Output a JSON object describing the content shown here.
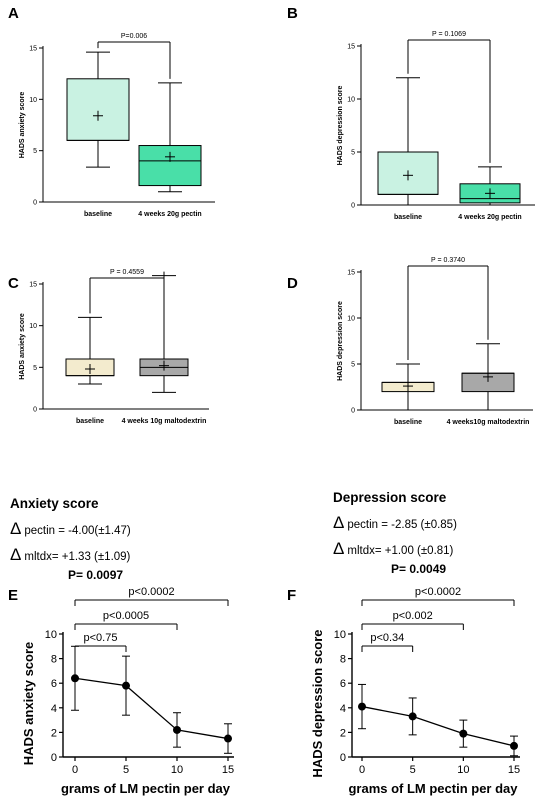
{
  "chart_data": [
    {
      "type": "box",
      "panel": "A",
      "ylabel": "HADS anxiety score",
      "ylim": [
        0,
        15
      ],
      "yticks": [
        "0",
        "5",
        "10",
        "15"
      ],
      "categories": [
        "baseline",
        "4 weeks 20g pectin"
      ],
      "boxes": [
        {
          "min": 3.4,
          "q1": 6.0,
          "median": 6.0,
          "q3": 12.0,
          "max": 14.6,
          "mean": 8.4,
          "color": "#c9f2e2"
        },
        {
          "min": 1.0,
          "q1": 1.6,
          "median": 4.0,
          "q3": 5.5,
          "max": 11.6,
          "mean": 4.4,
          "color": "#49dfa8"
        }
      ],
      "p_label": "P=0.006"
    },
    {
      "type": "box",
      "panel": "B",
      "ylabel": "HADS depression score",
      "ylim": [
        0,
        15
      ],
      "yticks": [
        "0",
        "5",
        "10",
        "15"
      ],
      "categories": [
        "baseline",
        "4 weeks 20g pectin"
      ],
      "boxes": [
        {
          "min": 0.0,
          "q1": 1.0,
          "median": 1.0,
          "q3": 5.0,
          "max": 12.0,
          "mean": 2.8,
          "color": "#c9f2e2"
        },
        {
          "min": 0.0,
          "q1": 0.2,
          "median": 0.6,
          "q3": 2.0,
          "max": 3.6,
          "mean": 1.1,
          "color": "#49dfa8"
        }
      ],
      "p_label": "P = 0.1069"
    },
    {
      "type": "box",
      "panel": "C",
      "ylabel": "HADS anxiety score",
      "ylim": [
        0,
        15
      ],
      "yticks": [
        "0",
        "5",
        "10",
        "15"
      ],
      "categories": [
        "baseline",
        "4 weeks 10g maltodextrin"
      ],
      "boxes": [
        {
          "min": 3.0,
          "q1": 4.0,
          "median": 4.0,
          "q3": 6.0,
          "max": 11.0,
          "mean": 4.8,
          "color": "#f3ebce"
        },
        {
          "min": 2.0,
          "q1": 4.0,
          "median": 5.0,
          "q3": 6.0,
          "max": 16.0,
          "mean": 5.2,
          "color": "#a8a8a8"
        }
      ],
      "p_label": "P = 0.4559"
    },
    {
      "type": "box",
      "panel": "D",
      "ylabel": "HADS depression score",
      "ylim": [
        0,
        15
      ],
      "yticks": [
        "0",
        "5",
        "10",
        "15"
      ],
      "categories": [
        "baseline",
        "4 weeks10g maltodextrin"
      ],
      "boxes": [
        {
          "min": 0.0,
          "q1": 2.0,
          "median": 3.0,
          "q3": 3.0,
          "max": 5.0,
          "mean": 2.6,
          "color": "#f3ebce"
        },
        {
          "min": 0.0,
          "q1": 2.0,
          "median": 4.0,
          "q3": 4.0,
          "max": 7.2,
          "mean": 3.6,
          "color": "#a8a8a8"
        }
      ],
      "p_label": "P = 0.3740"
    },
    {
      "type": "line",
      "panel": "E",
      "xlabel": "grams of LM pectin per day",
      "ylabel": "HADS anxiety score",
      "ylim": [
        0,
        10
      ],
      "yticks": [
        "0",
        "2",
        "4",
        "6",
        "8",
        "10"
      ],
      "xticks": [
        "0",
        "5",
        "10",
        "15"
      ],
      "x": [
        0,
        5,
        10,
        15
      ],
      "y": [
        6.4,
        5.8,
        2.2,
        1.5
      ],
      "err_lo": [
        2.6,
        2.4,
        1.4,
        1.2
      ],
      "err_hi": [
        2.6,
        2.4,
        1.4,
        1.2
      ],
      "brackets": [
        {
          "from": 0,
          "to": 15,
          "label": "p<0.0002"
        },
        {
          "from": 0,
          "to": 10,
          "label": "p<0.0005"
        },
        {
          "from": 0,
          "to": 5,
          "label": "p<0.75"
        }
      ]
    },
    {
      "type": "line",
      "panel": "F",
      "xlabel": "grams of LM pectin per day",
      "ylabel": "HADS depression score",
      "ylim": [
        0,
        10
      ],
      "yticks": [
        "0",
        "2",
        "4",
        "6",
        "8",
        "10"
      ],
      "xticks": [
        "0",
        "5",
        "10",
        "15"
      ],
      "x": [
        0,
        5,
        10,
        15
      ],
      "y": [
        4.1,
        3.3,
        1.9,
        0.9
      ],
      "err_lo": [
        1.8,
        1.5,
        1.1,
        0.8
      ],
      "err_hi": [
        1.8,
        1.5,
        1.1,
        0.8
      ],
      "brackets": [
        {
          "from": 0,
          "to": 15,
          "label": "p<0.0002"
        },
        {
          "from": 0,
          "to": 10,
          "label": "p<0.002"
        },
        {
          "from": 0,
          "to": 5,
          "label": "p<0.34"
        }
      ]
    }
  ],
  "stats": {
    "anxiety": {
      "title": "Anxiety score",
      "delta_symbol": "Δ",
      "pectin_line": "pectin = -4.00(±1.47)",
      "mltdx_line": "mltdx= +1.33 (±1.09)",
      "p": "P= 0.0097"
    },
    "depression": {
      "title": "Depression score",
      "delta_symbol": "Δ",
      "pectin_line": "pectin = -2.85 (±0.85)",
      "mltdx_line": "mltdx= +1.00 (±0.81)",
      "p": "P= 0.0049"
    }
  }
}
